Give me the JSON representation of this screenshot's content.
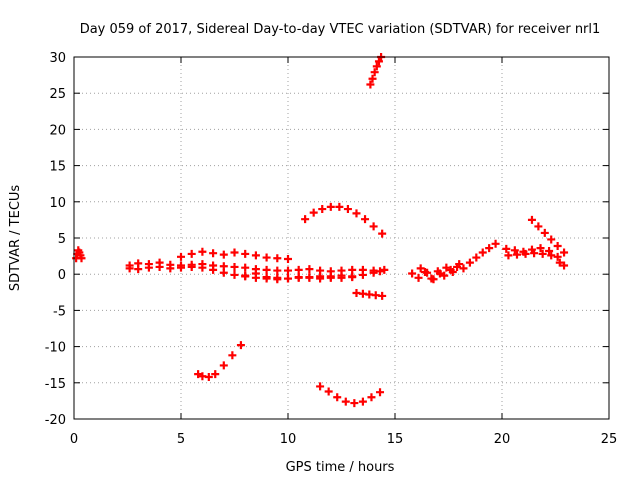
{
  "chart_data": {
    "type": "scatter",
    "title": "Day 059 of 2017, Sidereal Day-to-day VTEC variation (SDTVAR) for receiver nrl1",
    "xlabel": "GPS time / hours",
    "ylabel": "SDTVAR / TECUs",
    "xlim": [
      0,
      25
    ],
    "ylim": [
      -20,
      30
    ],
    "xticks": [
      0,
      5,
      10,
      15,
      20,
      25
    ],
    "yticks": [
      -20,
      -15,
      -10,
      -5,
      0,
      5,
      10,
      15,
      20,
      25,
      30
    ],
    "grid": true,
    "marker": "+",
    "color": "#ff0000",
    "series": [
      {
        "x": [
          0.1,
          0.15,
          0.2,
          0.25,
          0.3,
          0.35
        ],
        "y": [
          2.2,
          2.8,
          3.3,
          3.0,
          2.6,
          2.2
        ]
      },
      {
        "x": [
          2.6,
          3,
          3.5,
          4,
          4.5,
          5,
          5.5,
          6,
          6.5,
          7,
          7.5,
          8,
          8.5,
          9,
          9.5,
          10,
          10.5,
          11,
          11.5,
          12,
          12.5,
          13,
          13.5,
          14,
          14.5
        ],
        "y": [
          1.2,
          1.5,
          1.4,
          1.6,
          1.3,
          1.2,
          1.3,
          1.4,
          1.2,
          1.1,
          1.0,
          0.9,
          0.7,
          0.6,
          0.5,
          0.5,
          0.6,
          0.7,
          0.5,
          0.4,
          0.5,
          0.6,
          0.6,
          0.5,
          0.6
        ]
      },
      {
        "x": [
          2.6,
          3,
          3.5,
          4,
          4.5,
          5,
          5.5,
          6
        ],
        "y": [
          0.8,
          0.7,
          0.9,
          1.0,
          0.8,
          0.9,
          1.0,
          0.9
        ]
      },
      {
        "x": [
          5.0,
          5.5,
          6.0,
          6.5,
          7.0,
          7.5,
          8.0,
          8.5,
          9.0,
          9.5,
          10.0
        ],
        "y": [
          2.4,
          2.8,
          3.1,
          2.9,
          2.7,
          3.0,
          2.8,
          2.6,
          2.3,
          2.2,
          2.1
        ]
      },
      {
        "x": [
          6.5,
          7,
          7.5,
          8,
          8.5,
          9,
          9.5,
          10,
          10.5,
          11,
          11.5,
          12,
          12.5,
          13,
          13.5,
          14,
          14.3
        ],
        "y": [
          0.6,
          0.2,
          -0.1,
          -0.3,
          -0.5,
          -0.6,
          -0.7,
          -0.6,
          -0.5,
          -0.4,
          -0.3,
          -0.3,
          -0.2,
          -0.3,
          -0.1,
          0.2,
          0.4
        ]
      },
      {
        "x": [
          8.0,
          8.5,
          9.0,
          9.5,
          10.0,
          10.5,
          11.0,
          11.5,
          12.0,
          12.5,
          13.0
        ],
        "y": [
          -0.2,
          0.1,
          -0.4,
          -0.5,
          -0.6,
          -0.4,
          -0.5,
          -0.6,
          -0.5,
          -0.5,
          -0.4
        ]
      },
      {
        "x": [
          10.8,
          11.2,
          11.6,
          12.0,
          12.4,
          12.8,
          13.2,
          13.6,
          14.0,
          14.4
        ],
        "y": [
          7.6,
          8.5,
          9.0,
          9.3,
          9.3,
          9.0,
          8.4,
          7.6,
          6.6,
          5.6
        ]
      },
      {
        "x": [
          13.2,
          13.5,
          13.8,
          14.1,
          14.4
        ],
        "y": [
          -2.6,
          -2.7,
          -2.8,
          -2.9,
          -3.0
        ]
      },
      {
        "x": [
          5.8,
          6.0,
          6.3,
          6.6,
          7.0,
          7.4,
          7.8
        ],
        "y": [
          -13.8,
          -14.1,
          -14.2,
          -13.8,
          -12.6,
          -11.2,
          -9.8
        ]
      },
      {
        "x": [
          11.5,
          11.9,
          12.3,
          12.7,
          13.1,
          13.5,
          13.9,
          14.3
        ],
        "y": [
          -15.5,
          -16.2,
          -17.0,
          -17.6,
          -17.8,
          -17.6,
          -17.0,
          -16.3
        ]
      },
      {
        "x": [
          13.85,
          13.95,
          14.05,
          14.15,
          14.25,
          14.35
        ],
        "y": [
          26.2,
          27.0,
          27.9,
          28.7,
          29.4,
          30.0
        ]
      },
      {
        "x": [
          15.8,
          16.1,
          16.4,
          16.7,
          17.0,
          17.3,
          17.6,
          17.9,
          18.2,
          18.5,
          18.8,
          19.1,
          19.4,
          19.7
        ],
        "y": [
          0.1,
          -0.5,
          0.3,
          -0.6,
          0.4,
          -0.2,
          0.6,
          1.0,
          0.8,
          1.6,
          2.3,
          3.0,
          3.6,
          4.2
        ]
      },
      {
        "x": [
          16.2,
          16.5,
          16.8,
          17.1,
          17.4,
          17.7,
          18.0
        ],
        "y": [
          0.8,
          0.2,
          -0.7,
          0.1,
          0.9,
          0.3,
          1.4
        ]
      },
      {
        "x": [
          20.2,
          20.6,
          21.0,
          21.4,
          21.8,
          22.2,
          22.6,
          22.9
        ],
        "y": [
          3.5,
          3.3,
          3.1,
          3.4,
          3.6,
          3.2,
          2.4,
          1.2
        ]
      },
      {
        "x": [
          20.3,
          20.7,
          21.1,
          21.5,
          21.9,
          22.3,
          22.7
        ],
        "y": [
          2.6,
          2.7,
          2.8,
          2.9,
          2.8,
          2.6,
          1.6
        ]
      },
      {
        "x": [
          21.4,
          21.7,
          22.0,
          22.3,
          22.6,
          22.9
        ],
        "y": [
          7.5,
          6.6,
          5.7,
          4.8,
          3.9,
          3.0
        ]
      }
    ]
  }
}
